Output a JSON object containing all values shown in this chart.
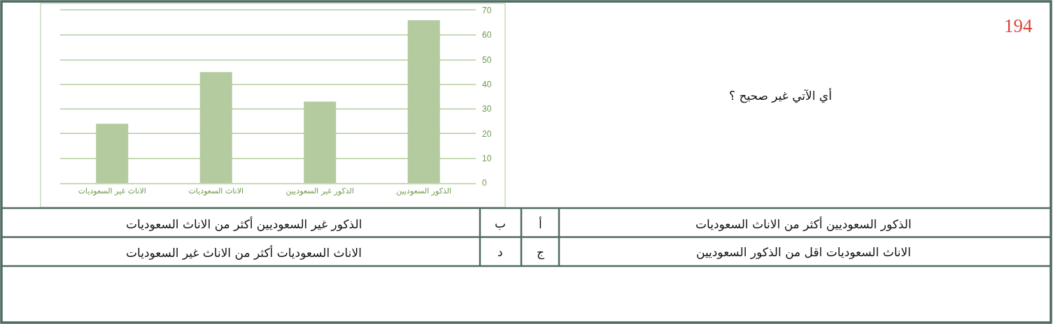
{
  "chart_data": {
    "type": "bar",
    "categories": [
      "الاناث غير السعوديات",
      "الاناث السعوديات",
      "الذكور غير السعوديين",
      "الذكور السعوديين"
    ],
    "values": [
      24,
      45,
      33,
      66
    ],
    "color": "#b3cb9f",
    "ylim": [
      0,
      70
    ],
    "yticks": [
      0,
      10,
      20,
      30,
      40,
      50,
      60,
      70
    ],
    "grid": "y",
    "annotations": [
      "194",
      "أي الآتي غير صحيح ؟",
      "أ",
      "الذكور السعوديين أكثر من الاناث السعوديات",
      "ب",
      "الذكور غير السعوديين أكثر من الاناث السعوديات",
      "ج",
      "الاناث السعوديات اقل من الذكور السعوديين",
      "د",
      "الاناث السعوديات أكثر من الاناث غير السعوديات"
    ]
  }
}
